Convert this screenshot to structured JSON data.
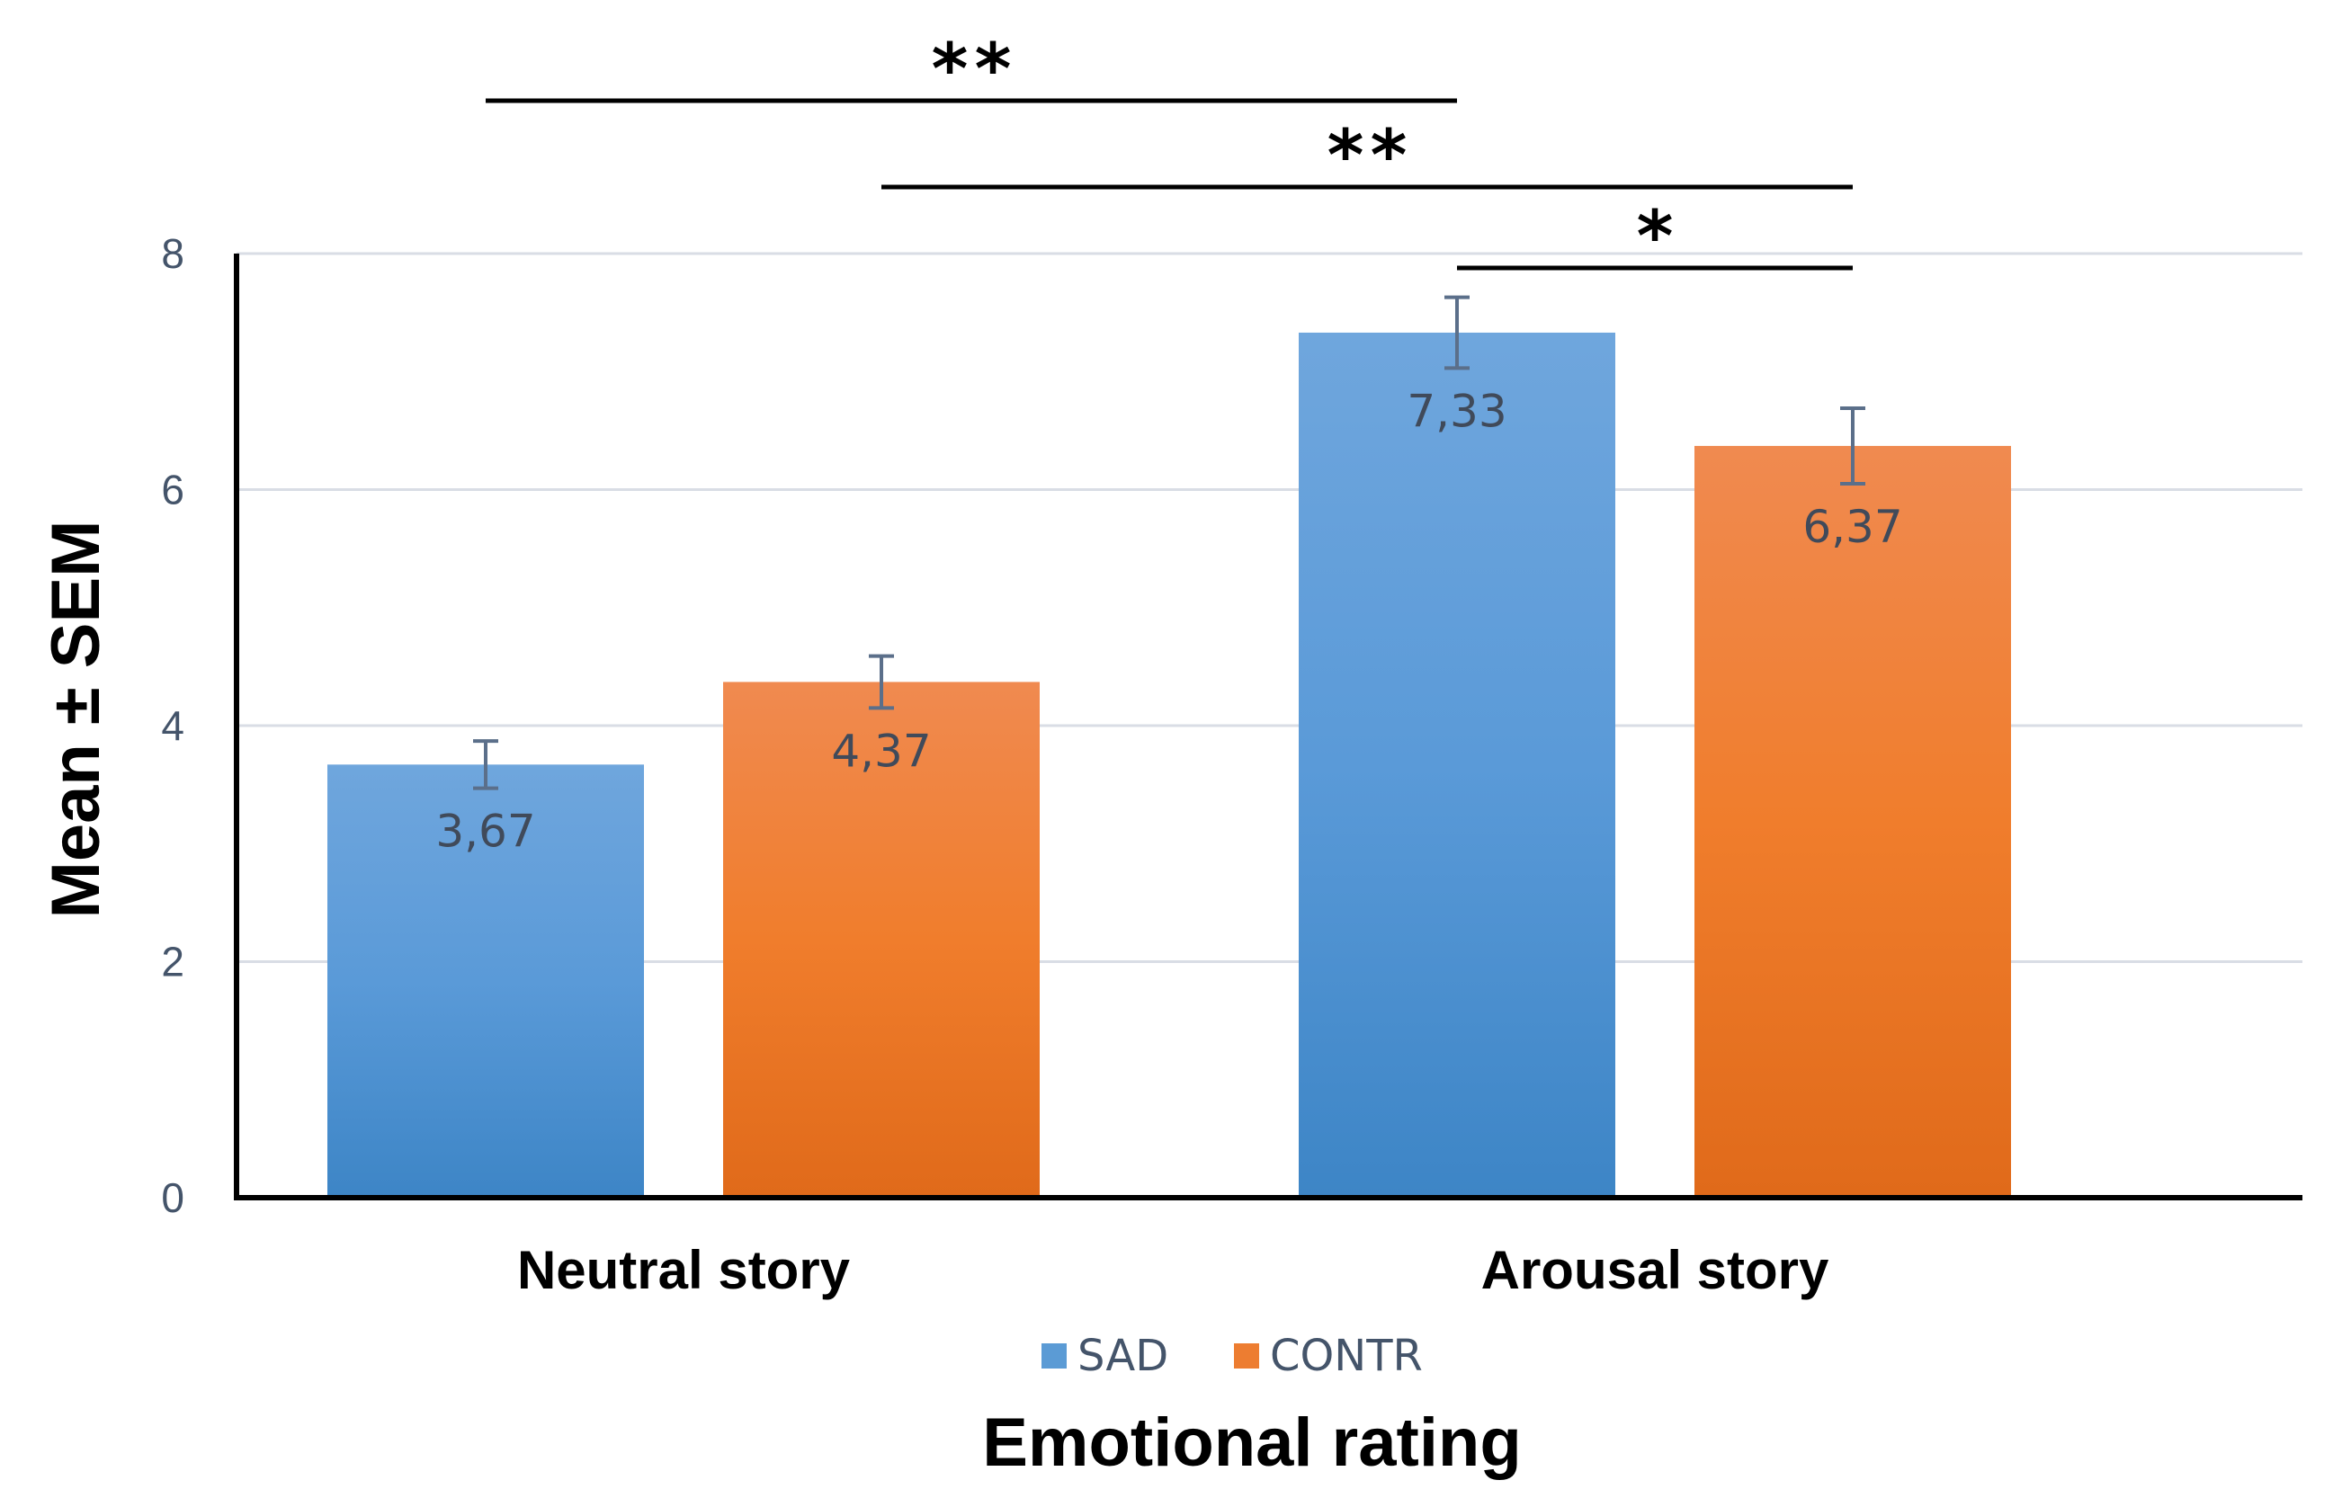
{
  "chart_data": {
    "type": "bar",
    "categories": [
      "Neutral story",
      "Arousal story"
    ],
    "series": [
      {
        "name": "SAD",
        "color": "#5b9bd5",
        "values": [
          3.67,
          7.33
        ],
        "sem": [
          0.2,
          0.3
        ],
        "labels": [
          "3,67",
          "7,33"
        ]
      },
      {
        "name": "CONTR",
        "color": "#ed7d31",
        "values": [
          4.37,
          6.37
        ],
        "sem": [
          0.22,
          0.32
        ],
        "labels": [
          "4,37",
          "6,37"
        ]
      }
    ],
    "ylim": [
      0,
      8
    ],
    "yticks": [
      0,
      2,
      4,
      6,
      8
    ],
    "ylabel": "Mean ± SEM",
    "xlabel": "Emotional rating",
    "legend_position": "bottom",
    "gridlines": true,
    "significance": [
      {
        "from": "SAD|Neutral story",
        "to": "SAD|Arousal story",
        "label": "**"
      },
      {
        "from": "CONTR|Neutral story",
        "to": "CONTR|Arousal story",
        "label": "**"
      },
      {
        "from": "SAD|Arousal story",
        "to": "CONTR|Arousal story",
        "label": "*"
      }
    ]
  }
}
